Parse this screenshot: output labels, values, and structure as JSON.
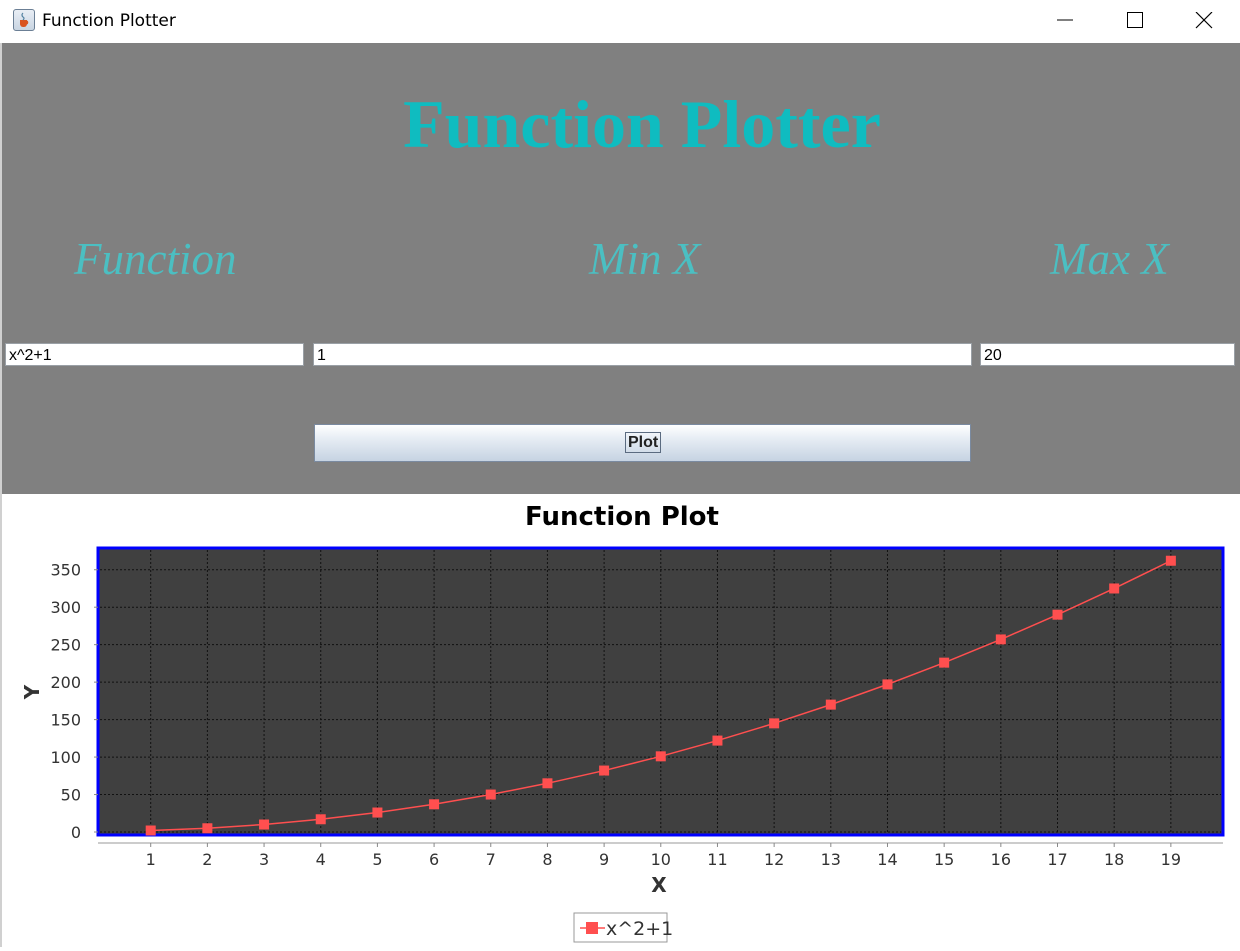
{
  "window": {
    "title": "Function Plotter"
  },
  "header": {
    "title": "Function Plotter"
  },
  "labels": {
    "function": "Function",
    "min_x": "Min X",
    "max_x": "Max X"
  },
  "inputs": {
    "function": "x^2+1",
    "min_x": "1",
    "max_x": "20"
  },
  "buttons": {
    "plot": "Plot"
  },
  "colors": {
    "accent": "#0fbcc0",
    "panel_bg": "#808080",
    "plot_bg": "#404040",
    "series": "#ff4f4f",
    "plot_border": "#0000ff"
  },
  "chart_data": {
    "type": "line",
    "title": "Function Plot",
    "xlabel": "X",
    "ylabel": "Y",
    "x": [
      1,
      2,
      3,
      4,
      5,
      6,
      7,
      8,
      9,
      10,
      11,
      12,
      13,
      14,
      15,
      16,
      17,
      18,
      19
    ],
    "series": [
      {
        "name": "x^2+1",
        "values": [
          2,
          5,
          10,
          17,
          26,
          37,
          50,
          65,
          82,
          101,
          122,
          145,
          170,
          197,
          226,
          257,
          290,
          325,
          362
        ]
      }
    ],
    "xticks": [
      "1",
      "2",
      "3",
      "4",
      "5",
      "6",
      "7",
      "8",
      "9",
      "10",
      "11",
      "12",
      "13",
      "14",
      "15",
      "16",
      "17",
      "18",
      "19"
    ],
    "yticks": [
      "0",
      "50",
      "100",
      "150",
      "200",
      "250",
      "300",
      "350"
    ],
    "ylim": [
      0,
      380
    ],
    "grid": true,
    "legend": "bottom-center"
  }
}
